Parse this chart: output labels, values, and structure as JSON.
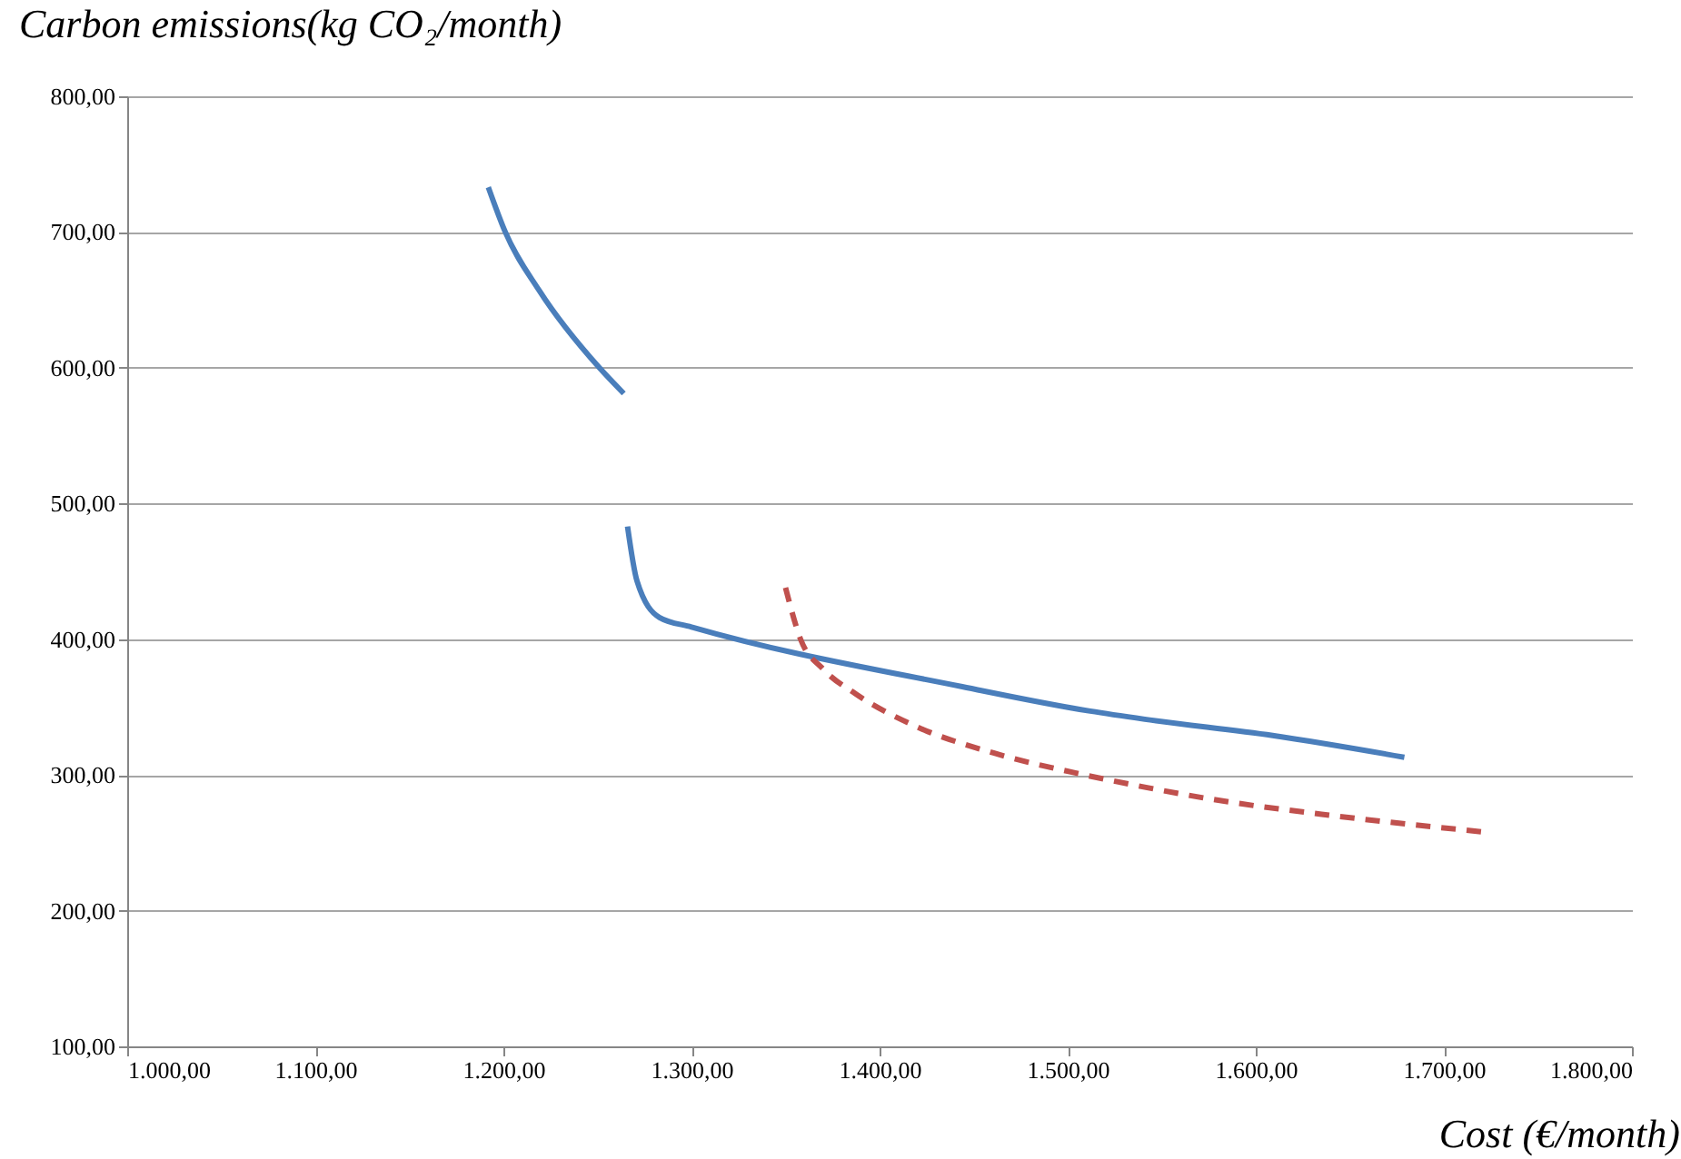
{
  "chart_data": {
    "type": "line",
    "xlabel": "Cost  (€/month)",
    "ylabel": "Carbon emissions(kg CO₂/month)",
    "xlim": [
      1000,
      1800
    ],
    "xticks": [
      {
        "value": 1000,
        "label": "1.000,00"
      },
      {
        "value": 1100,
        "label": "1.100,00"
      },
      {
        "value": 1200,
        "label": "1.200,00"
      },
      {
        "value": 1300,
        "label": "1.300,00"
      },
      {
        "value": 1400,
        "label": "1.400,00"
      },
      {
        "value": 1500,
        "label": "1.500,00"
      },
      {
        "value": 1600,
        "label": "1.600,00"
      },
      {
        "value": 1700,
        "label": "1.700,00"
      },
      {
        "value": 1800,
        "label": "1.800,00"
      }
    ],
    "ylim": [
      100,
      800
    ],
    "yticks": [
      {
        "value": 100,
        "label": "100,00"
      },
      {
        "value": 200,
        "label": "200,00"
      },
      {
        "value": 300,
        "label": "300,00"
      },
      {
        "value": 400,
        "label": "400,00"
      },
      {
        "value": 500,
        "label": "500,00"
      },
      {
        "value": 600,
        "label": "600,00"
      },
      {
        "value": 700,
        "label": "700,00"
      },
      {
        "value": 800,
        "label": "800,00"
      }
    ],
    "grid": "y",
    "series": [
      {
        "color": "#4a7ebb",
        "line_style": "solid",
        "x": [
          1192,
          1201,
          1219,
          1251,
          1264,
          1265,
          1266,
          1271,
          1283,
          1300,
          1444,
          1512,
          1541,
          1609,
          1679
        ],
        "values": [
          733,
          700,
          657,
          600,
          581,
          null,
          483,
          443,
          416,
          409,
          365,
          347,
          341,
          329,
          313
        ]
      },
      {
        "color": "#c0504d",
        "line_style": "dashed",
        "x": [
          1350,
          1358,
          1370,
          1387,
          1419,
          1461,
          1509,
          1541,
          1577,
          1641,
          1721
        ],
        "values": [
          438,
          400,
          378,
          360,
          336,
          316,
          300,
          291,
          282,
          270,
          258
        ]
      }
    ]
  }
}
